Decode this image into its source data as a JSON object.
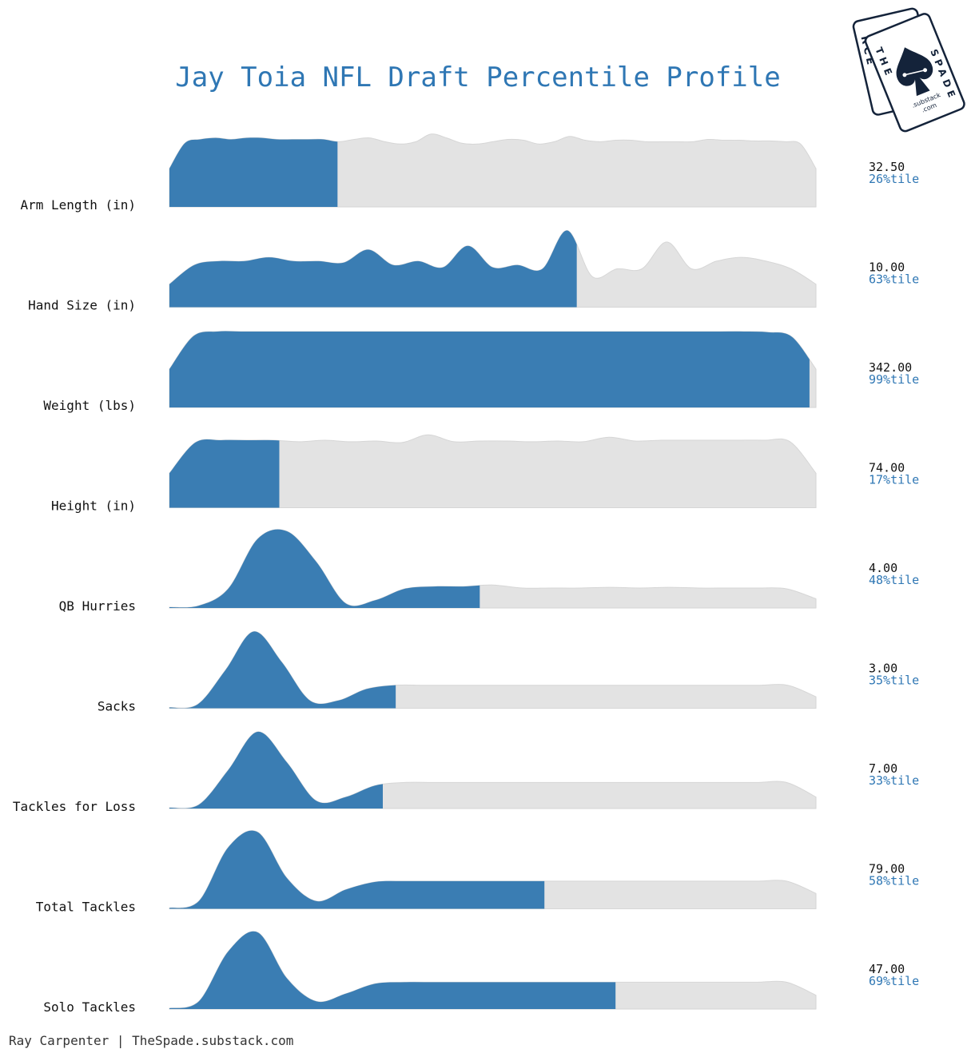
{
  "chart_data": {
    "type": "ridgeline",
    "title": "Jay Toia NFL Draft Percentile Profile",
    "colors": {
      "highlight": "#3a7db3",
      "background": "#e3e3e3",
      "title": "#2f77b4",
      "logo": "#14233a"
    },
    "rows": [
      {
        "label": "Arm Length (in)",
        "value": "32.50",
        "percentile": 26,
        "percentile_label": "26%tile",
        "density": [
          0.5,
          0.83,
          0.88,
          0.9,
          0.88,
          0.9,
          0.9,
          0.88,
          0.88,
          0.88,
          0.88,
          0.85,
          0.88,
          0.9,
          0.85,
          0.82,
          0.85,
          0.95,
          0.9,
          0.83,
          0.82,
          0.85,
          0.88,
          0.87,
          0.82,
          0.85,
          0.92,
          0.87,
          0.85,
          0.87,
          0.87,
          0.85,
          0.85,
          0.85,
          0.85,
          0.88,
          0.87,
          0.87,
          0.86,
          0.86,
          0.85,
          0.82,
          0.5
        ]
      },
      {
        "label": "Hand Size (in)",
        "value": "10.00",
        "percentile": 63,
        "percentile_label": "63%tile",
        "density": [
          0.3,
          0.55,
          0.6,
          0.6,
          0.65,
          0.6,
          0.6,
          0.58,
          0.75,
          0.55,
          0.6,
          0.52,
          0.8,
          0.52,
          0.55,
          0.5,
          1.0,
          0.4,
          0.5,
          0.5,
          0.85,
          0.5,
          0.6,
          0.65,
          0.6,
          0.5,
          0.3
        ]
      },
      {
        "label": "Weight (lbs)",
        "value": "342.00",
        "percentile": 99,
        "percentile_label": "99%tile",
        "density": [
          0.5,
          0.93,
          0.99,
          0.99,
          0.99,
          0.99,
          0.99,
          0.99,
          0.99,
          0.99,
          0.99,
          0.99,
          0.99,
          0.99,
          0.99,
          0.99,
          0.99,
          0.99,
          0.99,
          0.99,
          0.99,
          0.99,
          0.99,
          0.99,
          0.99,
          0.98,
          0.92,
          0.5
        ]
      },
      {
        "label": "Height (in)",
        "value": "74.00",
        "percentile": 17,
        "percentile_label": "17%tile",
        "density": [
          0.45,
          0.85,
          0.88,
          0.88,
          0.88,
          0.86,
          0.88,
          0.86,
          0.87,
          0.85,
          0.95,
          0.86,
          0.87,
          0.87,
          0.86,
          0.87,
          0.86,
          0.92,
          0.87,
          0.88,
          0.88,
          0.88,
          0.88,
          0.88,
          0.86,
          0.45
        ]
      },
      {
        "label": "QB Hurries",
        "value": "4.00",
        "percentile": 48,
        "percentile_label": "48%tile",
        "density": [
          0.01,
          0.03,
          0.25,
          0.9,
          1.0,
          0.6,
          0.06,
          0.1,
          0.25,
          0.28,
          0.28,
          0.3,
          0.26,
          0.26,
          0.26,
          0.27,
          0.26,
          0.27,
          0.26,
          0.26,
          0.26,
          0.25,
          0.12
        ]
      },
      {
        "label": "Sacks",
        "value": "3.00",
        "percentile": 35,
        "percentile_label": "35%tile",
        "density": [
          0.01,
          0.05,
          0.5,
          1.0,
          0.6,
          0.1,
          0.1,
          0.25,
          0.3,
          0.3,
          0.3,
          0.3,
          0.3,
          0.3,
          0.3,
          0.3,
          0.3,
          0.3,
          0.3,
          0.3,
          0.3,
          0.3,
          0.3,
          0.15
        ]
      },
      {
        "label": "Tackles for Loss",
        "value": "7.00",
        "percentile": 33,
        "percentile_label": "33%tile",
        "density": [
          0.01,
          0.05,
          0.5,
          1.0,
          0.6,
          0.1,
          0.15,
          0.3,
          0.34,
          0.34,
          0.34,
          0.34,
          0.34,
          0.34,
          0.34,
          0.34,
          0.34,
          0.34,
          0.34,
          0.34,
          0.34,
          0.34,
          0.15
        ]
      },
      {
        "label": "Total Tackles",
        "value": "79.00",
        "percentile": 58,
        "percentile_label": "58%tile",
        "density": [
          0.01,
          0.1,
          0.8,
          1.0,
          0.4,
          0.1,
          0.25,
          0.35,
          0.36,
          0.36,
          0.36,
          0.36,
          0.36,
          0.36,
          0.36,
          0.36,
          0.36,
          0.36,
          0.36,
          0.36,
          0.36,
          0.36,
          0.2
        ]
      },
      {
        "label": "Solo Tackles",
        "value": "47.00",
        "percentile": 69,
        "percentile_label": "69%tile",
        "density": [
          0.01,
          0.1,
          0.75,
          1.0,
          0.4,
          0.1,
          0.2,
          0.33,
          0.35,
          0.35,
          0.35,
          0.35,
          0.35,
          0.35,
          0.35,
          0.35,
          0.35,
          0.35,
          0.35,
          0.35,
          0.35,
          0.35,
          0.18
        ]
      }
    ]
  },
  "footer": "Ray Carpenter | TheSpade.substack.com",
  "logo": {
    "back_card_text": "RCE",
    "front_card_text_left": "THE",
    "front_card_text_right": "SPADE",
    "sub_text_1": ".substack",
    "sub_text_2": ".com",
    "icon": "spade-icon"
  }
}
